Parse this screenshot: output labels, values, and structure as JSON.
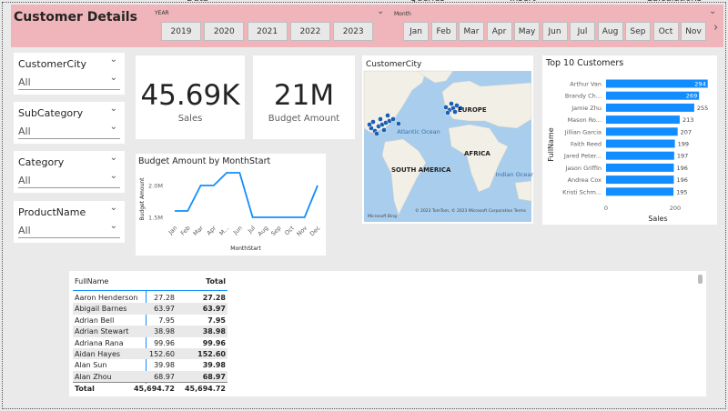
{
  "ribbon": [
    "Data",
    "Queries",
    "Insert",
    "Calculations"
  ],
  "header": {
    "title": "Customer Details",
    "year_label": "YEAR",
    "years": [
      "2019",
      "2020",
      "2021",
      "2022",
      "2023"
    ],
    "month_label": "Month",
    "months": [
      "Jan",
      "Feb",
      "Mar",
      "Apr",
      "May",
      "Jun",
      "Jul",
      "Aug",
      "Sep",
      "Oct",
      "Nov"
    ]
  },
  "slicers": [
    {
      "label": "CustomerCity",
      "value": "All"
    },
    {
      "label": "SubCategory",
      "value": "All"
    },
    {
      "label": "Category",
      "value": "All"
    },
    {
      "label": "ProductName",
      "value": "All"
    }
  ],
  "cards": [
    {
      "value": "45.69K",
      "label": "Sales"
    },
    {
      "value": "21M",
      "label": "Budget Amount"
    }
  ],
  "map": {
    "title": "CustomerCity",
    "labels": [
      "EUROPE",
      "Atlantic Ocean",
      "AFRICA",
      "SOUTH AMERICA",
      "Indian Ocean"
    ],
    "attribution": "© 2023 TomTom, © 2023 Microsoft Corporation  Terms",
    "logo": "Microsoft Bing"
  },
  "chart_data": [
    {
      "type": "line",
      "title": "Budget Amount by MonthStart",
      "x_label": "MonthStart",
      "y_label": "Budget Amount",
      "categories": [
        "Jan",
        "Feb",
        "Mar",
        "Apr",
        "M...",
        "Jun",
        "Jul",
        "Aug",
        "Sep",
        "Oct",
        "Nov",
        "Dec"
      ],
      "series": [
        {
          "name": "Budget Amount",
          "color": "#118dff",
          "values": [
            1600000,
            1600000,
            2000000,
            2000000,
            2200000,
            2200000,
            1500000,
            1500000,
            1500000,
            1500000,
            1500000,
            2000000
          ]
        }
      ],
      "ylim": [
        1400000,
        2300000
      ],
      "yticks": [
        {
          "value": 1500000,
          "label": "1.5M"
        },
        {
          "value": 2000000,
          "label": "2.0M"
        }
      ]
    },
    {
      "type": "hbar",
      "title": "Top 10 Customers",
      "x_label": "Sales",
      "y_label": "FullName",
      "categories": [
        "Arthur Van",
        "Brandy Ch...",
        "Jamie Zhu",
        "Mason Ro...",
        "Jillian Garcia",
        "Faith Reed",
        "Jared Peter...",
        "Jason Griffin",
        "Andrea Cox",
        "Kristi Schm..."
      ],
      "values": [
        294,
        269,
        255,
        213,
        207,
        199,
        197,
        196,
        196,
        195
      ],
      "color": "#118dff",
      "xlim": [
        0,
        320
      ],
      "xticks": [
        0,
        200
      ]
    }
  ],
  "table": {
    "columns": [
      "FullName",
      "Total"
    ],
    "rows": [
      [
        "Aaron Henderson",
        "27.28",
        "27.28"
      ],
      [
        "Abigail Barnes",
        "63.97",
        "63.97"
      ],
      [
        "Adrian Bell",
        "7.95",
        "7.95"
      ],
      [
        "Adrian Stewart",
        "38.98",
        "38.98"
      ],
      [
        "Adriana Rana",
        "99.96",
        "99.96"
      ],
      [
        "Aidan Hayes",
        "152.60",
        "152.60"
      ],
      [
        "Alan Sun",
        "39.98",
        "39.98"
      ],
      [
        "Alan Zhou",
        "68.97",
        "68.97"
      ]
    ],
    "total": [
      "Total",
      "45,694.72",
      "45,694.72"
    ]
  }
}
